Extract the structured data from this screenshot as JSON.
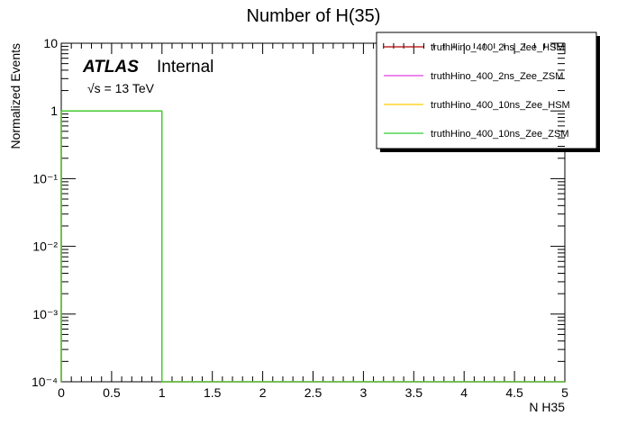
{
  "chart_data": {
    "type": "histogram",
    "title": "Number of H(35)",
    "x_label": "N H35",
    "y_label": "Normalized Events",
    "experiment": "ATLAS",
    "status": "Internal",
    "energy": "√s = 13 TeV",
    "bins": [
      0,
      1,
      2,
      3,
      4,
      5
    ],
    "series": [
      {
        "name": "truthHino_400_2ns_Zee_HSM",
        "color": "#b00000",
        "values": [
          1,
          0,
          0,
          0,
          0
        ]
      },
      {
        "name": "truthHino_400_2ns_Zee_ZSM",
        "color": "#e040e0",
        "values": [
          1,
          0,
          0,
          0,
          0
        ]
      },
      {
        "name": "truthHino_400_10ns_Zee_HSM",
        "color": "#ffcc00",
        "values": [
          1,
          0,
          0,
          0,
          0
        ]
      },
      {
        "name": "truthHino_400_10ns_Zee_ZSM",
        "color": "#33cc33",
        "values": [
          1,
          0,
          0,
          0,
          0
        ]
      }
    ],
    "xlim": [
      0,
      5
    ],
    "xticks": [
      0,
      0.5,
      1,
      1.5,
      2,
      2.5,
      3,
      3.5,
      4,
      4.5,
      5
    ],
    "ylim": [
      0.0001,
      10
    ],
    "y_scale": "log",
    "yticks": [
      {
        "value": 0.0001,
        "label": "10⁻⁴"
      },
      {
        "value": 0.001,
        "label": "10⁻³"
      },
      {
        "value": 0.01,
        "label": "10⁻²"
      },
      {
        "value": 0.1,
        "label": "10⁻¹"
      },
      1,
      10
    ],
    "legend_position": "top-right"
  }
}
